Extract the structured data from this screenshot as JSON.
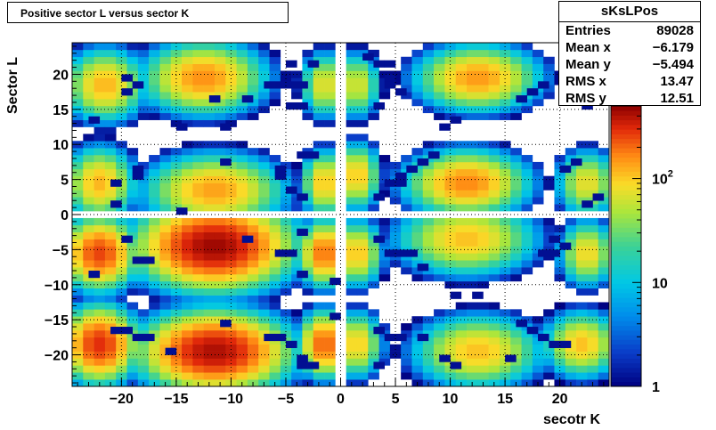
{
  "chart_data": {
    "type": "heatmap",
    "title": "Positive sector L versus sector K",
    "xlabel": "secotr K",
    "ylabel": "Sector L",
    "xlim": [
      -24.5,
      24.5
    ],
    "ylim": [
      -24.5,
      24.5
    ],
    "x_ticks": [
      -20,
      -15,
      -10,
      -5,
      0,
      5,
      10,
      15,
      20
    ],
    "y_ticks": [
      -20,
      -15,
      -10,
      -5,
      0,
      5,
      10,
      15,
      20
    ],
    "z_scale": "log",
    "z_range": [
      1,
      500
    ],
    "colorbar_ticks": [
      {
        "value": 1,
        "label": "1"
      },
      {
        "value": 10,
        "label": "10"
      },
      {
        "value": 100,
        "label": "10",
        "exponent": "2"
      }
    ],
    "grid": true,
    "clusters": [
      {
        "k": -21.5,
        "l": 18.5,
        "peak": 120,
        "sk": 1.6,
        "sl": 2.2
      },
      {
        "k": -12.5,
        "l": 19.5,
        "peak": 160,
        "sk": 2.4,
        "sl": 2.2
      },
      {
        "k": -1.5,
        "l": 18.5,
        "peak": 80,
        "sk": 0.9,
        "sl": 2.0
      },
      {
        "k": 1.5,
        "l": 18.5,
        "peak": 70,
        "sk": 0.9,
        "sl": 2.0
      },
      {
        "k": 12.5,
        "l": 19.5,
        "peak": 150,
        "sk": 2.4,
        "sl": 2.0
      },
      {
        "k": -22.0,
        "l": 4.5,
        "peak": 120,
        "sk": 1.4,
        "sl": 2.2
      },
      {
        "k": -11.5,
        "l": 3.5,
        "peak": 140,
        "sk": 2.7,
        "sl": 2.2
      },
      {
        "k": -1.5,
        "l": 4.5,
        "peak": 110,
        "sk": 0.9,
        "sl": 2.0
      },
      {
        "k": 1.5,
        "l": 5.5,
        "peak": 110,
        "sk": 0.9,
        "sl": 2.0
      },
      {
        "k": 11.5,
        "l": 4.5,
        "peak": 170,
        "sk": 2.4,
        "sl": 2.0
      },
      {
        "k": 22.5,
        "l": 4.5,
        "peak": 80,
        "sk": 1.2,
        "sl": 2.0
      },
      {
        "k": -22.0,
        "l": -5.5,
        "peak": 260,
        "sk": 1.5,
        "sl": 2.2
      },
      {
        "k": -11.5,
        "l": -4.5,
        "peak": 460,
        "sk": 3.0,
        "sl": 2.6
      },
      {
        "k": -1.5,
        "l": -5.5,
        "peak": 200,
        "sk": 1.0,
        "sl": 2.0
      },
      {
        "k": 1.5,
        "l": -5.5,
        "peak": 110,
        "sk": 1.0,
        "sl": 2.0
      },
      {
        "k": 11.5,
        "l": -3.5,
        "peak": 110,
        "sk": 2.7,
        "sl": 2.2
      },
      {
        "k": 22.5,
        "l": -5.5,
        "peak": 90,
        "sk": 1.1,
        "sl": 2.0
      },
      {
        "k": -22.0,
        "l": -18.5,
        "peak": 300,
        "sk": 1.5,
        "sl": 2.3
      },
      {
        "k": -11.5,
        "l": -19.5,
        "peak": 420,
        "sk": 2.9,
        "sl": 2.4
      },
      {
        "k": -1.5,
        "l": -18.5,
        "peak": 220,
        "sk": 1.0,
        "sl": 2.0
      },
      {
        "k": 1.5,
        "l": -18.5,
        "peak": 100,
        "sk": 1.0,
        "sl": 2.0
      },
      {
        "k": 12.5,
        "l": -19.5,
        "peak": 110,
        "sk": 2.5,
        "sl": 2.2
      },
      {
        "k": 22.0,
        "l": -18.5,
        "peak": 110,
        "sk": 1.5,
        "sl": 2.0
      }
    ],
    "isolated_bins": [
      [
        -19.5,
        19.5
      ],
      [
        -18.5,
        18.5
      ],
      [
        -19.5,
        17.5
      ],
      [
        -22.5,
        13.5
      ],
      [
        -14.5,
        12.5
      ],
      [
        -10.5,
        12.5
      ],
      [
        -11.5,
        16.5
      ],
      [
        -8.5,
        16.5
      ],
      [
        -6.5,
        18.5
      ],
      [
        -5.5,
        18.5
      ],
      [
        -4.5,
        18.5
      ],
      [
        -3.5,
        18.5
      ],
      [
        -4.5,
        21.5
      ],
      [
        -2.5,
        21.5
      ],
      [
        -4.5,
        15.5
      ],
      [
        -3.5,
        15.5
      ],
      [
        3.5,
        15.5
      ],
      [
        4.5,
        18.5
      ],
      [
        5.5,
        17.5
      ],
      [
        3.5,
        21.5
      ],
      [
        2.5,
        22.5
      ],
      [
        4.5,
        21.5
      ],
      [
        4.5,
        19.5
      ],
      [
        9.5,
        12.5
      ],
      [
        10.5,
        13.5
      ],
      [
        17.5,
        17.5
      ],
      [
        18.5,
        18.5
      ],
      [
        16.5,
        16.5
      ],
      [
        22.5,
        15.5
      ],
      [
        -18.5,
        6.5
      ],
      [
        -20.5,
        4.5
      ],
      [
        -18.5,
        5.5
      ],
      [
        -20.5,
        1.5
      ],
      [
        -10.5,
        7.5
      ],
      [
        -14.5,
        0.5
      ],
      [
        -5.5,
        6.5
      ],
      [
        -5.5,
        5.5
      ],
      [
        -4.5,
        3.5
      ],
      [
        -3.5,
        2.5
      ],
      [
        -3.5,
        8.5
      ],
      [
        -2.5,
        8.5
      ],
      [
        3.5,
        2.5
      ],
      [
        4.5,
        4.5
      ],
      [
        5.5,
        4.5
      ],
      [
        5.5,
        5.5
      ],
      [
        6.5,
        6.5
      ],
      [
        7.5,
        7.5
      ],
      [
        8.5,
        8.5
      ],
      [
        21.5,
        7.5
      ],
      [
        20.5,
        6.5
      ],
      [
        22.5,
        1.5
      ],
      [
        23.5,
        2.5
      ],
      [
        -19.5,
        -3.5
      ],
      [
        -18.5,
        -6.5
      ],
      [
        -17.5,
        -6.5
      ],
      [
        -22.5,
        -8.5
      ],
      [
        -8.5,
        -3.5
      ],
      [
        -5.5,
        -5.5
      ],
      [
        -4.5,
        -5.5
      ],
      [
        -3.5,
        -2.5
      ],
      [
        -3.5,
        -8.5
      ],
      [
        -0.5,
        -9.5
      ],
      [
        3.5,
        -3.5
      ],
      [
        4.5,
        -5.5
      ],
      [
        5.5,
        -5.5
      ],
      [
        6.5,
        -5.5
      ],
      [
        7.5,
        -7.5
      ],
      [
        10.5,
        -11.5
      ],
      [
        12.5,
        -11.5
      ],
      [
        19.5,
        -3.5
      ],
      [
        20.5,
        -4.5
      ],
      [
        19.5,
        -5.5
      ],
      [
        18.5,
        -5.5
      ],
      [
        -20.5,
        -16.5
      ],
      [
        -19.5,
        -16.5
      ],
      [
        -18.5,
        -17.5
      ],
      [
        -17.5,
        -17.5
      ],
      [
        -15.5,
        -19.5
      ],
      [
        -10.5,
        -15.5
      ],
      [
        -6.5,
        -17.5
      ],
      [
        -5.5,
        -17.5
      ],
      [
        -4.5,
        -18.5
      ],
      [
        -3.5,
        -20.5
      ],
      [
        -3.5,
        -21.5
      ],
      [
        -2.5,
        -21.5
      ],
      [
        -0.5,
        -14.5
      ],
      [
        3.5,
        -16.5
      ],
      [
        4.5,
        -17.5
      ],
      [
        5.5,
        -17.5
      ],
      [
        7.5,
        -17.5
      ],
      [
        3.5,
        -21.5
      ],
      [
        9.5,
        -20.5
      ],
      [
        10.5,
        -21.5
      ],
      [
        15.5,
        -20.5
      ],
      [
        16.5,
        -15.5
      ],
      [
        17.5,
        -16.5
      ],
      [
        18.5,
        -17.5
      ],
      [
        19.5,
        -18.5
      ],
      [
        20.5,
        -18.5
      ]
    ]
  },
  "stats": {
    "name": "sKsLPos",
    "rows": [
      {
        "label": "Entries",
        "value": "89028"
      },
      {
        "label": "Mean x",
        "value": "−6.179"
      },
      {
        "label": "Mean y",
        "value": "−5.494"
      },
      {
        "label": "RMS x",
        "value": "13.47"
      },
      {
        "label": "RMS y",
        "value": "12.51"
      }
    ]
  }
}
